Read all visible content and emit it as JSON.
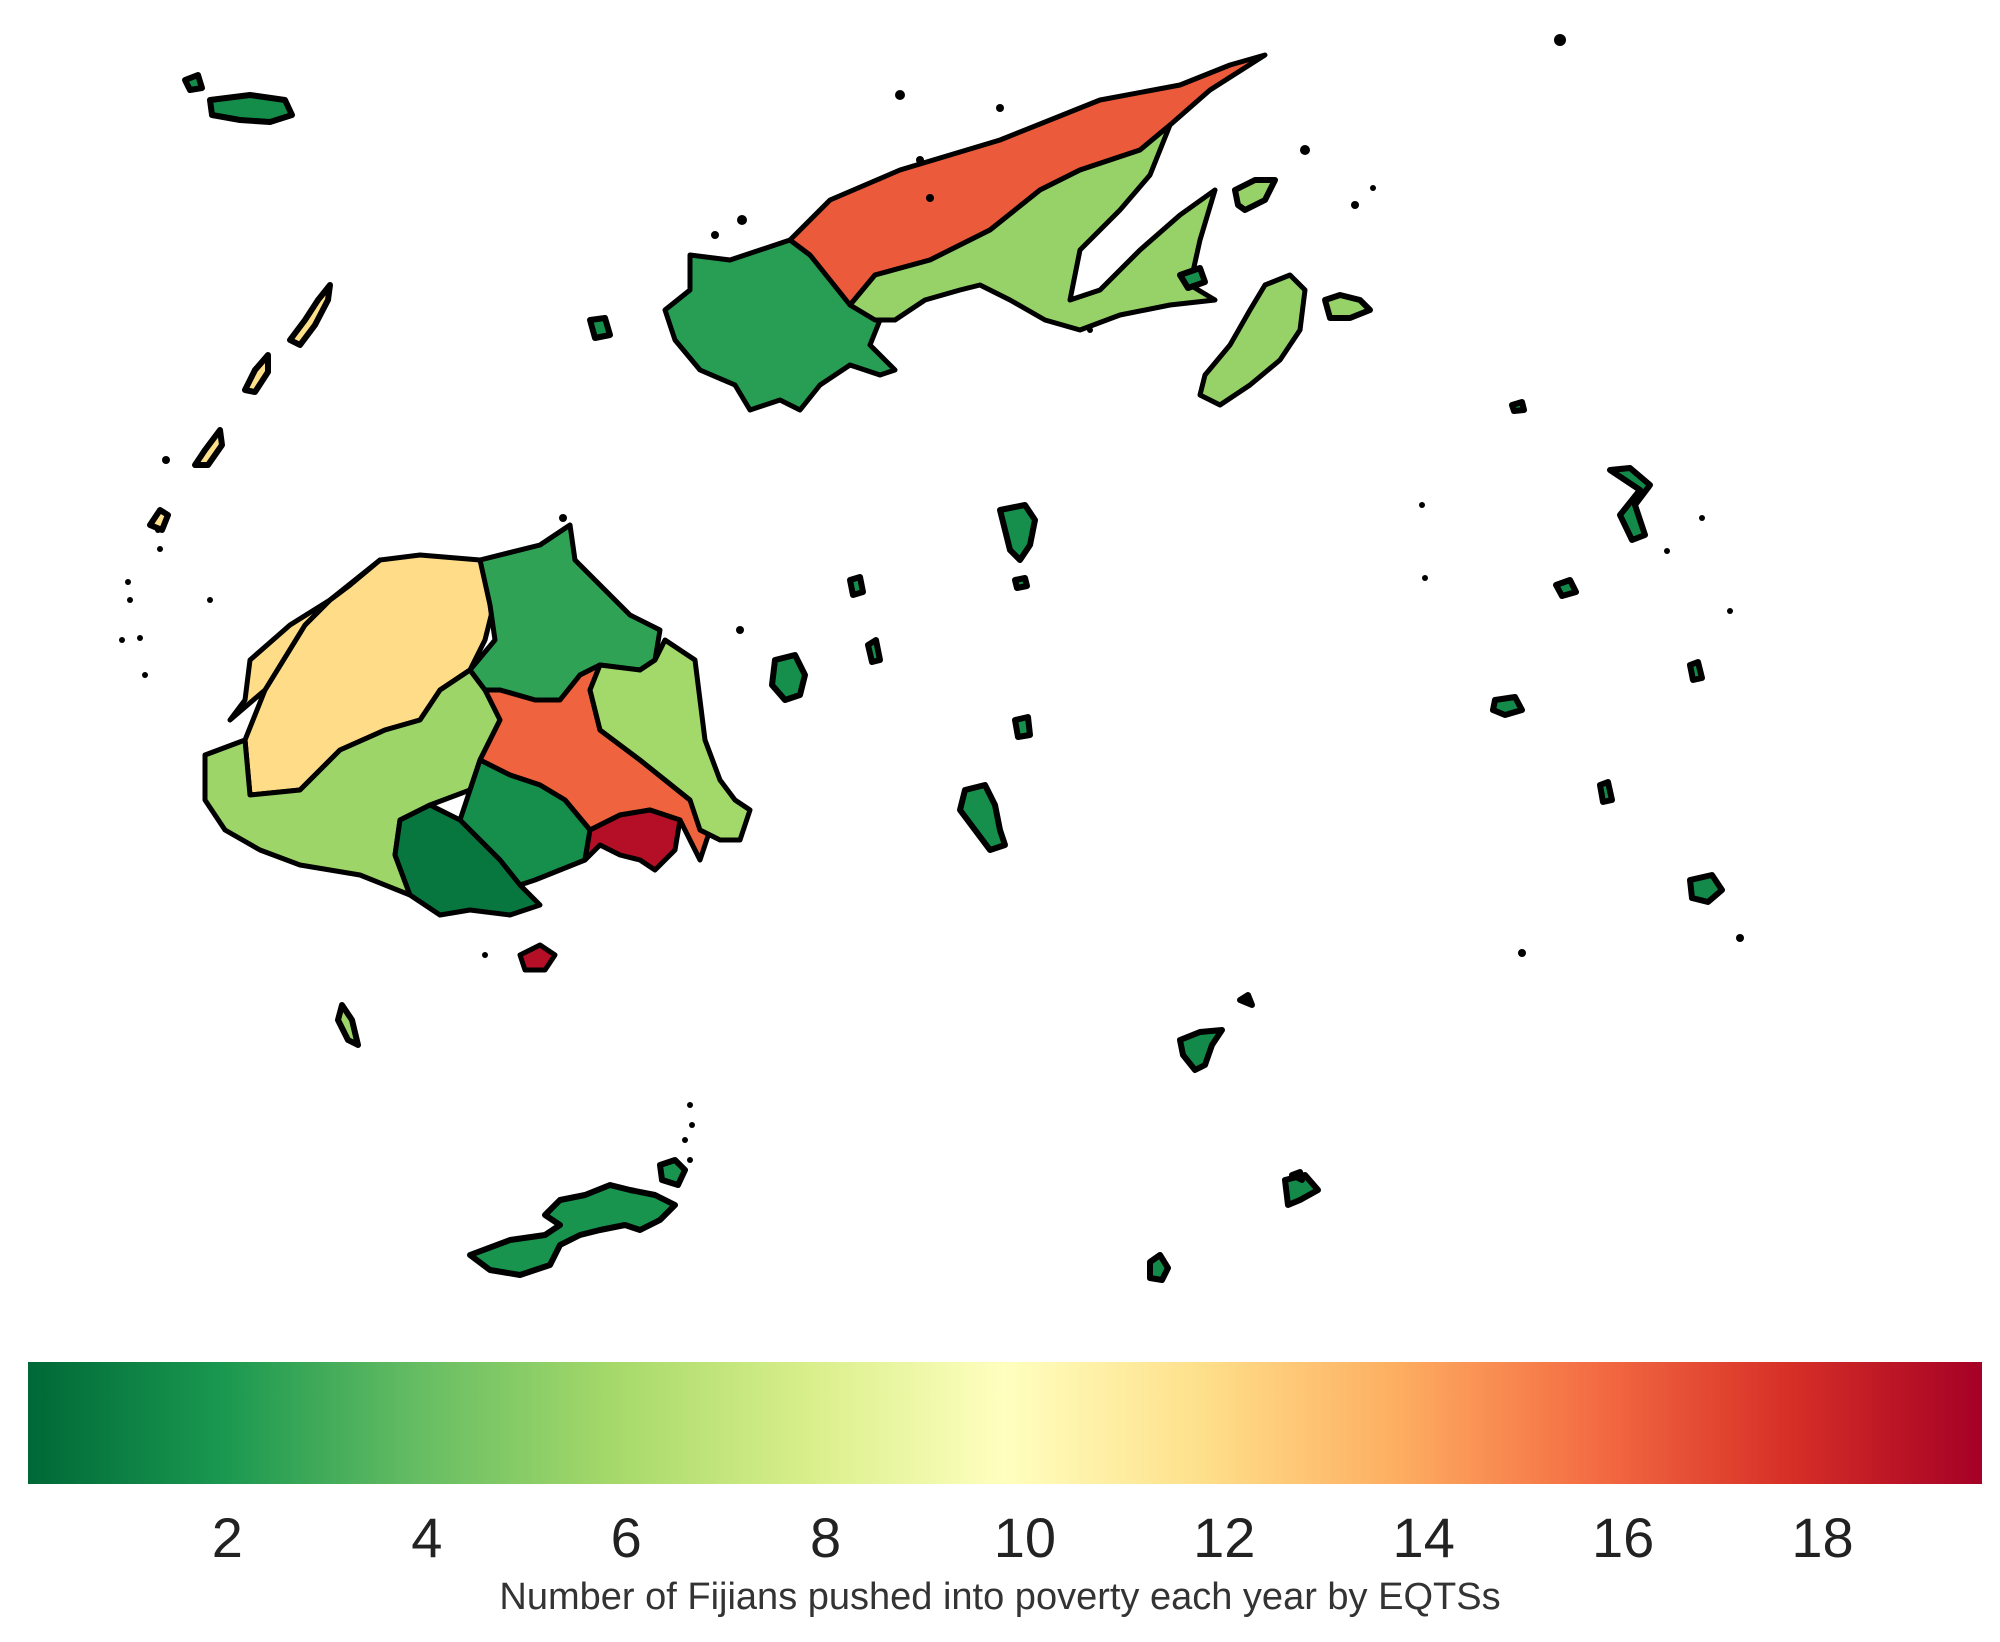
{
  "colorbar": {
    "label": "Number of Fijians pushed into poverty each year by EQTSs",
    "ticks": [
      "2",
      "4",
      "6",
      "8",
      "10",
      "12",
      "14",
      "16",
      "18"
    ],
    "range": [
      0,
      19.6
    ],
    "colormap": "RdYlGn_r",
    "colors": [
      "#006837",
      "#1a9850",
      "#66bd63",
      "#a6d96a",
      "#d9ef8b",
      "#ffffbf",
      "#fee08b",
      "#fdae61",
      "#f46d43",
      "#d73027",
      "#a50026"
    ]
  },
  "legend_placement": "bottom",
  "regions": [
    {
      "id": "bua",
      "value": 2.3
    },
    {
      "id": "macuata",
      "value": 16.3
    },
    {
      "id": "cakaudrove",
      "value": 5.4
    },
    {
      "id": "taveuni",
      "value": 5.4
    },
    {
      "id": "ba",
      "value": 11.9
    },
    {
      "id": "nadroga-navosa",
      "value": 5.6
    },
    {
      "id": "ra",
      "value": 2.5
    },
    {
      "id": "naitasiri",
      "value": 16.0
    },
    {
      "id": "tailevu",
      "value": 5.8
    },
    {
      "id": "namosi",
      "value": 1.6
    },
    {
      "id": "serua",
      "value": 0.6
    },
    {
      "id": "rewa",
      "value": 19.0
    },
    {
      "id": "beqa",
      "value": 19.0
    },
    {
      "id": "yasawa",
      "value": 11.8
    },
    {
      "id": "vatulele",
      "value": 5.6
    },
    {
      "id": "kadavu",
      "value": 1.8
    },
    {
      "id": "lomaiviti",
      "value": 1.6
    },
    {
      "id": "lau",
      "value": 1.4
    },
    {
      "id": "rotuma",
      "value": 1.5
    }
  ]
}
